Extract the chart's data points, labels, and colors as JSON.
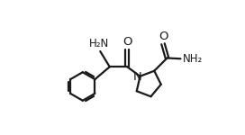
{
  "background_color": "#ffffff",
  "line_color": "#1a1a1a",
  "line_width": 1.6,
  "font_size_labels": 8.5,
  "figsize": [
    2.72,
    1.5
  ],
  "dpi": 100,
  "xlim": [
    0,
    10
  ],
  "ylim": [
    0,
    10
  ]
}
